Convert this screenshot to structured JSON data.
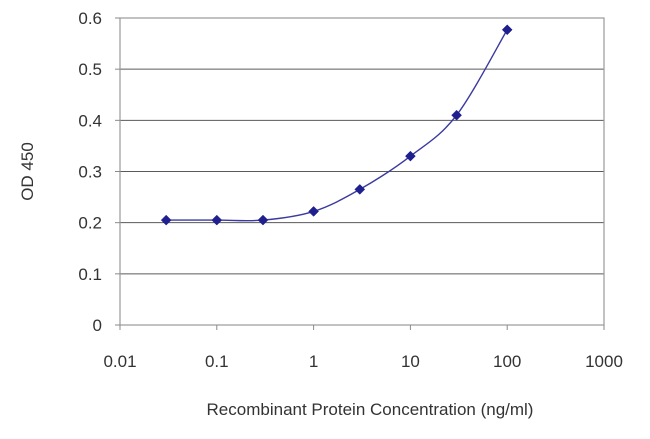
{
  "chart_data": {
    "type": "line",
    "title": "",
    "xlabel": "Recombinant Protein Concentration (ng/ml)",
    "ylabel": "OD 450",
    "xscale": "log",
    "xlim": [
      0.01,
      1000
    ],
    "ylim": [
      0,
      0.6
    ],
    "x_ticks": [
      "0.01",
      "0.1",
      "1",
      "10",
      "100",
      "1000"
    ],
    "y_ticks": [
      "0",
      "0.1",
      "0.2",
      "0.3",
      "0.4",
      "0.5",
      "0.6"
    ],
    "grid": "horizontal",
    "legend": "none",
    "series": [
      {
        "color": "#1f1f8f",
        "marker": "diamond",
        "x": [
          0.03,
          0.1,
          0.3,
          1,
          3,
          10,
          30,
          100
        ],
        "y": [
          0.205,
          0.205,
          0.205,
          0.222,
          0.265,
          0.33,
          0.41,
          0.577
        ]
      }
    ]
  }
}
